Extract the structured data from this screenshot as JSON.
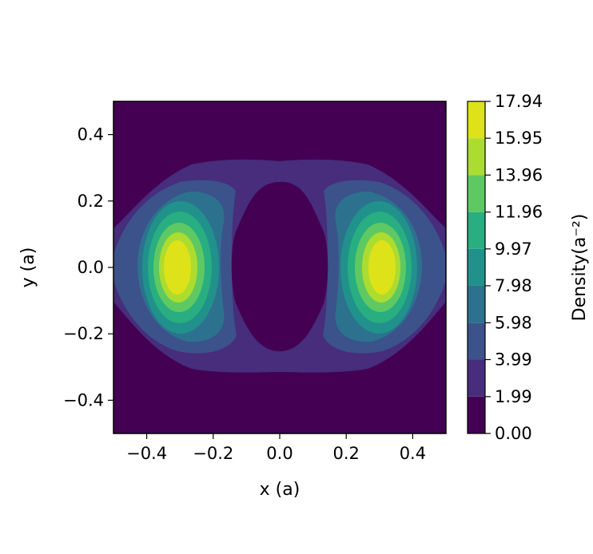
{
  "chart_data": {
    "type": "heatmap",
    "subtype": "filled-contour",
    "title": "",
    "xlabel": "x (a)",
    "ylabel": "y (a)",
    "xlim": [
      -0.5,
      0.5
    ],
    "ylim": [
      -0.5,
      0.5
    ],
    "x_ticks": [
      -0.4,
      -0.2,
      0.0,
      0.2,
      0.4
    ],
    "x_tick_labels": [
      "−0.4",
      "−0.2",
      "0.0",
      "0.2",
      "0.4"
    ],
    "y_ticks": [
      -0.4,
      -0.2,
      0.0,
      0.2,
      0.4
    ],
    "y_tick_labels": [
      "−0.4",
      "−0.2",
      "0.0",
      "0.2",
      "0.4"
    ],
    "grid": false,
    "colormap": "viridis",
    "colorbar": {
      "label": "Density(a⁻²)",
      "levels": [
        0.0,
        1.99,
        3.99,
        5.98,
        7.98,
        9.97,
        11.96,
        13.96,
        15.95,
        17.94
      ],
      "tick_labels": [
        "0.00",
        "1.99",
        "3.99",
        "5.98",
        "7.98",
        "9.97",
        "11.96",
        "13.96",
        "15.95",
        "17.94"
      ],
      "colors": [
        "#440154",
        "#472d7b",
        "#3b528b",
        "#2c728e",
        "#21918c",
        "#28ae80",
        "#5ec962",
        "#addc30",
        "#dde318"
      ]
    },
    "peaks": [
      {
        "x": -0.3,
        "y": 0.0,
        "value": 17.94
      },
      {
        "x": 0.3,
        "y": 0.0,
        "value": 17.94
      }
    ]
  }
}
